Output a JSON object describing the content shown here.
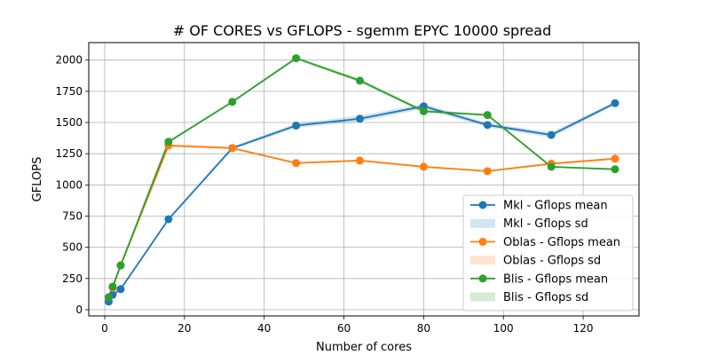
{
  "chart_data": {
    "type": "line",
    "title": "# OF CORES vs GFLOPS - sgemm  EPYC 10000 spread",
    "xlabel": "Number of cores",
    "ylabel": "GFLOPS",
    "xlim": [
      -4,
      134
    ],
    "ylim": [
      -50,
      2140
    ],
    "xticks": [
      0,
      20,
      40,
      60,
      80,
      100,
      120
    ],
    "yticks": [
      0,
      250,
      500,
      750,
      1000,
      1250,
      1500,
      1750,
      2000
    ],
    "grid": true,
    "legend_position": "lower right",
    "x": [
      1,
      2,
      4,
      16,
      32,
      48,
      64,
      80,
      96,
      112,
      128
    ],
    "series": [
      {
        "name": "Mkl - Gflops mean",
        "sd_name": "Mkl - Gflops sd",
        "color": "#1f77b4",
        "values": [
          65,
          120,
          165,
          725,
          1295,
          1475,
          1530,
          1630,
          1480,
          1400,
          1655
        ],
        "sd": [
          3,
          4,
          5,
          10,
          12,
          18,
          25,
          20,
          18,
          22,
          15
        ]
      },
      {
        "name": "Oblas - Gflops mean",
        "sd_name": "Oblas - Gflops sd",
        "color": "#ff7f0e",
        "values": [
          100,
          175,
          355,
          1315,
          1295,
          1175,
          1195,
          1145,
          1110,
          1170,
          1210
        ],
        "sd": [
          3,
          4,
          5,
          12,
          8,
          8,
          8,
          8,
          8,
          8,
          8
        ]
      },
      {
        "name": "Blis - Gflops mean",
        "sd_name": "Blis - Gflops sd",
        "color": "#2ca02c",
        "values": [
          100,
          185,
          355,
          1345,
          1665,
          2015,
          1835,
          1590,
          1560,
          1145,
          1125
        ],
        "sd": [
          3,
          4,
          5,
          10,
          8,
          12,
          15,
          12,
          10,
          8,
          8
        ]
      }
    ]
  }
}
